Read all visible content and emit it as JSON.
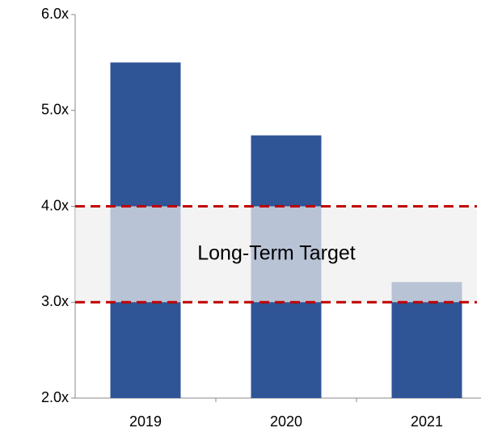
{
  "chart_data": {
    "type": "bar",
    "categories": [
      "2019",
      "2020",
      "2021"
    ],
    "values": [
      5.5,
      4.74,
      3.21
    ],
    "color": "#2f5597",
    "ylim": [
      2,
      6
    ],
    "yticks": [
      {
        "value": 2,
        "label": "2.0x"
      },
      {
        "value": 3,
        "label": "3.0x"
      },
      {
        "value": 4,
        "label": "4.0x"
      },
      {
        "value": 5,
        "label": "5.0x"
      },
      {
        "value": 6,
        "label": "6.0x"
      }
    ],
    "target_band": [
      3,
      4
    ],
    "target_band_color": "#c00000",
    "annotation": "Long-Term Target"
  }
}
